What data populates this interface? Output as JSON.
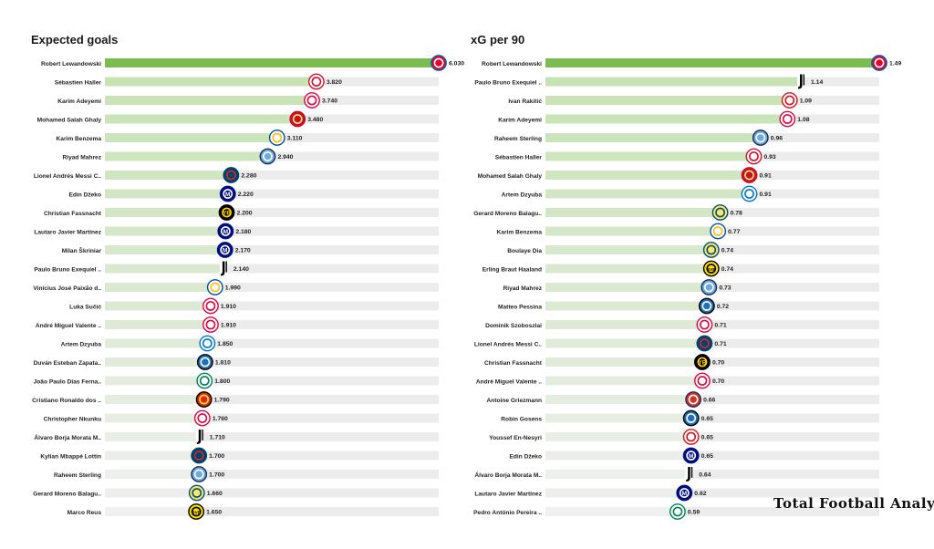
{
  "brand": "Total Football Analysis",
  "colors": {
    "top_bar": "#7cbb4f",
    "bg_track": "#ececec"
  },
  "chart_data": [
    {
      "type": "bar",
      "orientation": "horizontal",
      "title": "Expected goals",
      "xlabel": "",
      "ylabel": "",
      "xlim": [
        0,
        6.03
      ],
      "categories": [
        "Robert Lewandowski",
        "Sébastien Haller",
        "Karim Adeyemi",
        "Mohamed  Salah Ghaly",
        "Karim Benzema",
        "Riyad Mahrez",
        "Lionel Andrés Messi C..",
        "Edin Džeko",
        "Christian Fassnacht",
        "Lautaro Javier Martínez",
        "Milan Škriniar",
        "Paulo Bruno Exequiel ..",
        "Vinícius José Paixão d..",
        "Luka Sučić",
        "André Miguel Valente ..",
        "Artem Dzyuba",
        "Duván Esteban Zapata..",
        "João Paulo Dias Ferna..",
        "Cristiano Ronaldo dos ..",
        "Christopher Nkunku",
        "Álvaro Borja Morata M..",
        "Kylian Mbappé Lottin",
        "Raheem Sterling",
        "Gerard Moreno Balagu..",
        "Marco Reus"
      ],
      "values": [
        6.03,
        3.82,
        3.74,
        3.48,
        3.11,
        2.94,
        2.28,
        2.22,
        2.2,
        2.18,
        2.17,
        2.14,
        1.99,
        1.91,
        1.91,
        1.85,
        1.81,
        1.8,
        1.79,
        1.76,
        1.71,
        1.7,
        1.7,
        1.66,
        1.65
      ],
      "value_labels": [
        "6.030",
        "3.820",
        "3.740",
        "3.480",
        "3.110",
        "2.940",
        "2.280",
        "2.220",
        "2.200",
        "2.180",
        "2.170",
        "2.140",
        "1.990",
        "1.910",
        "1.910",
        "1.850",
        "1.810",
        "1.800",
        "1.790",
        "1.760",
        "1.710",
        "1.700",
        "1.700",
        "1.660",
        "1.650"
      ],
      "club_icons": [
        "bayern-icon",
        "ajax-icon",
        "leipzig-icon",
        "liverpool-icon",
        "real-madrid-icon",
        "man-city-icon",
        "psg-icon",
        "inter-icon",
        "young-boys-icon",
        "inter-icon",
        "inter-icon",
        "juventus-icon",
        "real-madrid-icon",
        "leipzig-icon",
        "leipzig-icon",
        "zenit-icon",
        "atalanta-icon",
        "sporting-icon",
        "man-united-icon",
        "leipzig-icon",
        "juventus-icon",
        "psg-icon",
        "man-city-icon",
        "villarreal-icon",
        "dortmund-icon"
      ],
      "grid": false
    },
    {
      "type": "bar",
      "orientation": "horizontal",
      "title": "xG per 90",
      "xlabel": "",
      "ylabel": "",
      "xlim": [
        0,
        1.49
      ],
      "categories": [
        "Robert Lewandowski",
        "Paulo Bruno Exequiel ..",
        "Ivan Rakitić",
        "Karim Adeyemi",
        "Raheem Sterling",
        "Sébastien Haller",
        "Mohamed  Salah Ghaly",
        "Artem Dzyuba",
        "Gerard Moreno Balagu..",
        "Karim Benzema",
        "Boulaye Dia",
        "Erling Braut Haaland",
        "Riyad Mahrez",
        "Matteo Pessina",
        "Dominik Szoboszlai",
        "Lionel Andrés Messi C..",
        "Christian Fassnacht",
        "André Miguel Valente ..",
        "Antoine Griezmann",
        "Robin Gosens",
        "Youssef En-Nesyri",
        "Edin Džeko",
        "Álvaro Borja Morata M..",
        "Lautaro Javier Martínez",
        "Pedro António Pereira .."
      ],
      "values": [
        1.49,
        1.14,
        1.09,
        1.08,
        0.96,
        0.93,
        0.91,
        0.91,
        0.78,
        0.77,
        0.74,
        0.74,
        0.73,
        0.72,
        0.71,
        0.71,
        0.7,
        0.7,
        0.66,
        0.65,
        0.65,
        0.65,
        0.64,
        0.62,
        0.59
      ],
      "value_labels": [
        "1.49",
        "1.14",
        "1.09",
        "1.08",
        "0.96",
        "0.93",
        "0.91",
        "0.91",
        "0.78",
        "0.77",
        "0.74",
        "0.74",
        "0.73",
        "0.72",
        "0.71",
        "0.71",
        "0.70",
        "0.70",
        "0.66",
        "0.65",
        "0.65",
        "0.65",
        "0.64",
        "0.62",
        "0.59"
      ],
      "club_icons": [
        "bayern-icon",
        "juventus-icon",
        "sevilla-icon",
        "leipzig-icon",
        "man-city-icon",
        "ajax-icon",
        "liverpool-icon",
        "zenit-icon",
        "villarreal-icon",
        "real-madrid-icon",
        "villarreal-icon",
        "dortmund-icon",
        "man-city-icon",
        "atalanta-icon",
        "leipzig-icon",
        "psg-icon",
        "young-boys-icon",
        "leipzig-icon",
        "atletico-icon",
        "atalanta-icon",
        "sevilla-icon",
        "inter-icon",
        "juventus-icon",
        "inter-icon",
        "sporting-icon"
      ],
      "grid": false
    }
  ]
}
